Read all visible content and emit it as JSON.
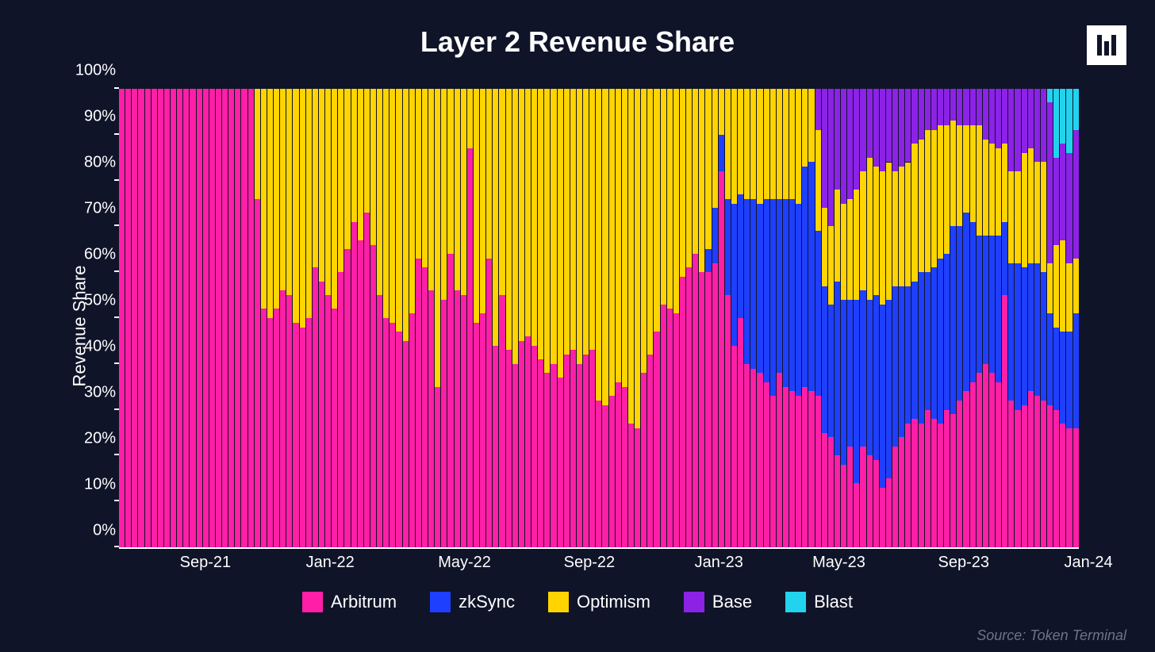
{
  "chart": {
    "type": "stacked-bar-100pct",
    "title": "Layer 2 Revenue Share",
    "title_fontsize": 36,
    "title_color": "#ffffff",
    "background_color": "#0f1429",
    "bar_gap_color": "#0f1429",
    "ylabel": "Revenue Share",
    "ylabel_fontsize": 22,
    "ytick_fontsize": 20,
    "xtick_fontsize": 20,
    "legend_fontsize": 22,
    "ylim": [
      0,
      100
    ],
    "ytick_step": 10,
    "ytick_suffix": "%",
    "source_text": "Source: Token Terminal",
    "source_color": "#6b7489",
    "source_fontsize": 18,
    "xtick_labels": [
      "Sep-21",
      "Jan-22",
      "May-22",
      "Sep-22",
      "Jan-23",
      "May-23",
      "Sep-23",
      "Jan-24"
    ],
    "xtick_positions_pct": [
      9,
      22,
      36,
      49,
      62.5,
      75,
      88,
      101
    ],
    "series": [
      {
        "name": "Arbitrum",
        "color": "#ff1fa6"
      },
      {
        "name": "zkSync",
        "color": "#1f3fff"
      },
      {
        "name": "Optimism",
        "color": "#ffd400"
      },
      {
        "name": "Base",
        "color": "#8c22e6"
      },
      {
        "name": "Blast",
        "color": "#22d3ee"
      }
    ],
    "data": [
      [
        100,
        0,
        0,
        0,
        0
      ],
      [
        100,
        0,
        0,
        0,
        0
      ],
      [
        100,
        0,
        0,
        0,
        0
      ],
      [
        100,
        0,
        0,
        0,
        0
      ],
      [
        100,
        0,
        0,
        0,
        0
      ],
      [
        100,
        0,
        0,
        0,
        0
      ],
      [
        100,
        0,
        0,
        0,
        0
      ],
      [
        100,
        0,
        0,
        0,
        0
      ],
      [
        100,
        0,
        0,
        0,
        0
      ],
      [
        100,
        0,
        0,
        0,
        0
      ],
      [
        100,
        0,
        0,
        0,
        0
      ],
      [
        100,
        0,
        0,
        0,
        0
      ],
      [
        100,
        0,
        0,
        0,
        0
      ],
      [
        100,
        0,
        0,
        0,
        0
      ],
      [
        100,
        0,
        0,
        0,
        0
      ],
      [
        100,
        0,
        0,
        0,
        0
      ],
      [
        100,
        0,
        0,
        0,
        0
      ],
      [
        100,
        0,
        0,
        0,
        0
      ],
      [
        100,
        0,
        0,
        0,
        0
      ],
      [
        100,
        0,
        0,
        0,
        0
      ],
      [
        100,
        0,
        0,
        0,
        0
      ],
      [
        76,
        0,
        24,
        0,
        0
      ],
      [
        52,
        0,
        48,
        0,
        0
      ],
      [
        50,
        0,
        50,
        0,
        0
      ],
      [
        52,
        0,
        48,
        0,
        0
      ],
      [
        56,
        0,
        44,
        0,
        0
      ],
      [
        55,
        0,
        45,
        0,
        0
      ],
      [
        49,
        0,
        51,
        0,
        0
      ],
      [
        48,
        0,
        52,
        0,
        0
      ],
      [
        50,
        0,
        50,
        0,
        0
      ],
      [
        61,
        0,
        39,
        0,
        0
      ],
      [
        58,
        0,
        42,
        0,
        0
      ],
      [
        55,
        0,
        45,
        0,
        0
      ],
      [
        52,
        0,
        48,
        0,
        0
      ],
      [
        60,
        0,
        40,
        0,
        0
      ],
      [
        65,
        0,
        35,
        0,
        0
      ],
      [
        71,
        0,
        29,
        0,
        0
      ],
      [
        67,
        0,
        33,
        0,
        0
      ],
      [
        73,
        0,
        27,
        0,
        0
      ],
      [
        66,
        0,
        34,
        0,
        0
      ],
      [
        55,
        0,
        45,
        0,
        0
      ],
      [
        50,
        0,
        50,
        0,
        0
      ],
      [
        49,
        0,
        51,
        0,
        0
      ],
      [
        47,
        0,
        53,
        0,
        0
      ],
      [
        45,
        0,
        55,
        0,
        0
      ],
      [
        51,
        0,
        49,
        0,
        0
      ],
      [
        63,
        0,
        37,
        0,
        0
      ],
      [
        61,
        0,
        39,
        0,
        0
      ],
      [
        56,
        0,
        44,
        0,
        0
      ],
      [
        35,
        0,
        65,
        0,
        0
      ],
      [
        54,
        0,
        46,
        0,
        0
      ],
      [
        64,
        0,
        36,
        0,
        0
      ],
      [
        56,
        0,
        44,
        0,
        0
      ],
      [
        55,
        0,
        45,
        0,
        0
      ],
      [
        87,
        0,
        13,
        0,
        0
      ],
      [
        49,
        0,
        51,
        0,
        0
      ],
      [
        51,
        0,
        49,
        0,
        0
      ],
      [
        63,
        0,
        37,
        0,
        0
      ],
      [
        44,
        0,
        56,
        0,
        0
      ],
      [
        55,
        0,
        45,
        0,
        0
      ],
      [
        43,
        0,
        57,
        0,
        0
      ],
      [
        40,
        0,
        60,
        0,
        0
      ],
      [
        45,
        0,
        55,
        0,
        0
      ],
      [
        46,
        0,
        54,
        0,
        0
      ],
      [
        44,
        0,
        56,
        0,
        0
      ],
      [
        41,
        0,
        59,
        0,
        0
      ],
      [
        38,
        0,
        62,
        0,
        0
      ],
      [
        40,
        0,
        60,
        0,
        0
      ],
      [
        37,
        0,
        63,
        0,
        0
      ],
      [
        42,
        0,
        58,
        0,
        0
      ],
      [
        43,
        0,
        57,
        0,
        0
      ],
      [
        40,
        0,
        60,
        0,
        0
      ],
      [
        42,
        0,
        58,
        0,
        0
      ],
      [
        43,
        0,
        57,
        0,
        0
      ],
      [
        32,
        0,
        68,
        0,
        0
      ],
      [
        31,
        0,
        69,
        0,
        0
      ],
      [
        33,
        0,
        67,
        0,
        0
      ],
      [
        36,
        0,
        64,
        0,
        0
      ],
      [
        35,
        0,
        65,
        0,
        0
      ],
      [
        27,
        0,
        73,
        0,
        0
      ],
      [
        26,
        0,
        74,
        0,
        0
      ],
      [
        38,
        0,
        62,
        0,
        0
      ],
      [
        42,
        0,
        58,
        0,
        0
      ],
      [
        47,
        0,
        53,
        0,
        0
      ],
      [
        53,
        0,
        47,
        0,
        0
      ],
      [
        52,
        0,
        48,
        0,
        0
      ],
      [
        51,
        0,
        49,
        0,
        0
      ],
      [
        59,
        0,
        41,
        0,
        0
      ],
      [
        61,
        0,
        39,
        0,
        0
      ],
      [
        64,
        0,
        36,
        0,
        0
      ],
      [
        60,
        0,
        40,
        0,
        0
      ],
      [
        60,
        5,
        35,
        0,
        0
      ],
      [
        62,
        12,
        26,
        0,
        0
      ],
      [
        82,
        8,
        10,
        0,
        0
      ],
      [
        55,
        21,
        24,
        0,
        0
      ],
      [
        44,
        31,
        25,
        0,
        0
      ],
      [
        50,
        27,
        23,
        0,
        0
      ],
      [
        40,
        36,
        24,
        0,
        0
      ],
      [
        39,
        37,
        24,
        0,
        0
      ],
      [
        38,
        37,
        25,
        0,
        0
      ],
      [
        36,
        40,
        24,
        0,
        0
      ],
      [
        33,
        43,
        24,
        0,
        0
      ],
      [
        38,
        38,
        24,
        0,
        0
      ],
      [
        35,
        41,
        24,
        0,
        0
      ],
      [
        34,
        42,
        24,
        0,
        0
      ],
      [
        33,
        42,
        25,
        0,
        0
      ],
      [
        35,
        48,
        17,
        0,
        0
      ],
      [
        34,
        50,
        16,
        0,
        0
      ],
      [
        33,
        36,
        22,
        9,
        0
      ],
      [
        25,
        32,
        17,
        26,
        0
      ],
      [
        24,
        29,
        17,
        30,
        0
      ],
      [
        20,
        38,
        20,
        22,
        0
      ],
      [
        18,
        36,
        21,
        25,
        0
      ],
      [
        22,
        32,
        22,
        24,
        0
      ],
      [
        14,
        40,
        24,
        22,
        0
      ],
      [
        22,
        34,
        26,
        18,
        0
      ],
      [
        20,
        34,
        31,
        15,
        0
      ],
      [
        19,
        36,
        28,
        17,
        0
      ],
      [
        13,
        40,
        29,
        18,
        0
      ],
      [
        15,
        39,
        30,
        16,
        0
      ],
      [
        22,
        35,
        25,
        18,
        0
      ],
      [
        24,
        33,
        26,
        17,
        0
      ],
      [
        27,
        30,
        27,
        16,
        0
      ],
      [
        28,
        30,
        30,
        12,
        0
      ],
      [
        27,
        33,
        29,
        11,
        0
      ],
      [
        30,
        30,
        31,
        9,
        0
      ],
      [
        28,
        33,
        30,
        9,
        0
      ],
      [
        27,
        36,
        29,
        8,
        0
      ],
      [
        30,
        34,
        28,
        8,
        0
      ],
      [
        29,
        41,
        23,
        7,
        0
      ],
      [
        32,
        38,
        22,
        8,
        0
      ],
      [
        34,
        39,
        19,
        8,
        0
      ],
      [
        36,
        35,
        21,
        8,
        0
      ],
      [
        38,
        30,
        24,
        8,
        0
      ],
      [
        40,
        28,
        21,
        11,
        0
      ],
      [
        38,
        30,
        20,
        12,
        0
      ],
      [
        36,
        32,
        19,
        13,
        0
      ],
      [
        55,
        16,
        17,
        12,
        0
      ],
      [
        32,
        30,
        20,
        18,
        0
      ],
      [
        30,
        32,
        20,
        18,
        0
      ],
      [
        31,
        30,
        25,
        14,
        0
      ],
      [
        34,
        28,
        25,
        13,
        0
      ],
      [
        33,
        29,
        22,
        16,
        0
      ],
      [
        32,
        28,
        24,
        16,
        0
      ],
      [
        31,
        20,
        11,
        35,
        3
      ],
      [
        30,
        18,
        18,
        19,
        15
      ],
      [
        27,
        20,
        20,
        21,
        12
      ],
      [
        26,
        21,
        15,
        24,
        14
      ],
      [
        26,
        25,
        12,
        28,
        9
      ]
    ]
  }
}
